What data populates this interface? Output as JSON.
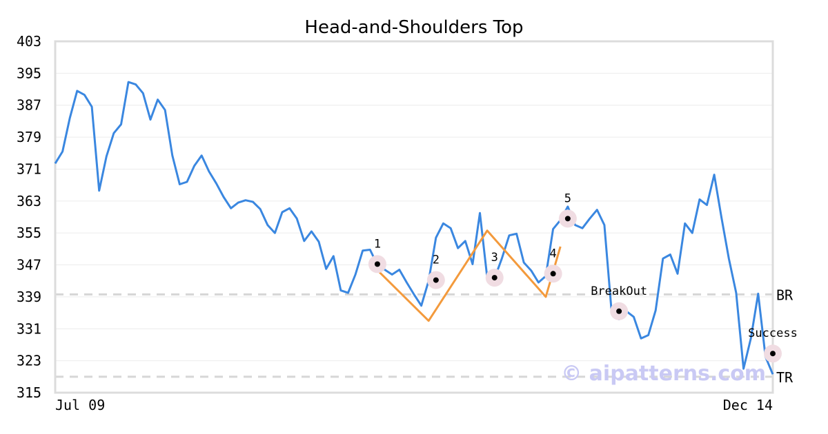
{
  "chart_data": {
    "type": "line",
    "title": "Head-and-Shoulders Top",
    "ylim": [
      315,
      403
    ],
    "yticks": [
      "403",
      "395",
      "387",
      "379",
      "371",
      "363",
      "355",
      "347",
      "339",
      "331",
      "323",
      "315"
    ],
    "xtick_labels": {
      "start": "Jul 09",
      "end": "Dec 14"
    },
    "grid": true,
    "colors": {
      "price": "#3a87e0",
      "pattern": "#f39a3c",
      "marker_halo": "#f0dce2",
      "reference": "#d6d6d6"
    },
    "series": [
      {
        "values": [
          372.4,
          375.4,
          383.8,
          390.6,
          389.6,
          386.6,
          365.6,
          374.2,
          380.0,
          382.2,
          392.8,
          392.2,
          390.0,
          383.4,
          388.4,
          385.8,
          374.4,
          367.2,
          367.8,
          371.8,
          374.4,
          370.4,
          367.4,
          364.0,
          361.2,
          362.6,
          363.2,
          362.8,
          361.0,
          357.0,
          355.0,
          360.2,
          361.2,
          358.6,
          353.0,
          355.4,
          352.8,
          346.0,
          349.2,
          340.6,
          340.0,
          344.6,
          350.6,
          350.8,
          347.0,
          345.8,
          344.6,
          345.8,
          342.6,
          339.6,
          336.8,
          343.0,
          353.8,
          357.4,
          356.2,
          351.2,
          353.0,
          347.2,
          360.0,
          343.8,
          343.6,
          348.6,
          354.4,
          354.8,
          347.6,
          345.6,
          342.6,
          344.2,
          356.0,
          358.2,
          361.6,
          357.0,
          356.2,
          358.6,
          360.8,
          357.0,
          335.0,
          333.4,
          335.4,
          334.0,
          328.6,
          329.4,
          335.6,
          348.6,
          349.6,
          344.8,
          357.4,
          355.0,
          363.4,
          362.0,
          369.6,
          358.8,
          348.6,
          340.0,
          321.0,
          328.6,
          339.8,
          324.0,
          319.6
        ]
      }
    ],
    "pattern_line": {
      "x_index": [
        43,
        51,
        59,
        67,
        69
      ],
      "values": [
        347.5,
        333.0,
        355.6,
        339.0,
        351.6
      ]
    },
    "markers": [
      {
        "label": "1",
        "x_index": 44,
        "value": 347.2
      },
      {
        "label": "2",
        "x_index": 52,
        "value": 343.2
      },
      {
        "label": "3",
        "x_index": 60,
        "value": 343.8
      },
      {
        "label": "4",
        "x_index": 68,
        "value": 344.8
      },
      {
        "label": "5",
        "x_index": 70,
        "value": 358.6
      },
      {
        "label": "BreakOut",
        "x_index": 77,
        "value": 335.4
      },
      {
        "label": "Success",
        "x_index": 98,
        "value": 324.8
      }
    ],
    "reference_lines": [
      {
        "label": "BR",
        "value": 339.6
      },
      {
        "label": "TR",
        "value": 319.0
      }
    ],
    "watermark": "© aipatterns.com"
  }
}
